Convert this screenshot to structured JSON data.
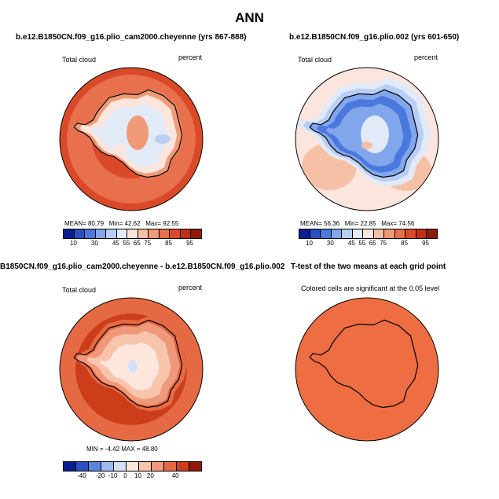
{
  "figure_title": "ANN",
  "panels": [
    {
      "title": "b.e12.B1850CN.f09_g16.plio_cam2000.cheyenne (yrs 867-888)",
      "left_label": "Total cloud",
      "right_label": "percent",
      "stats": {
        "mean_label": "MEAN=",
        "mean": "80.79",
        "min_label": "Min=",
        "min": "42.62",
        "max_label": "Max=",
        "max": "92.55"
      },
      "colorbar_ticks": [
        "10",
        "30",
        "45",
        "55",
        "65",
        "75",
        "85",
        "95"
      ]
    },
    {
      "title": "b.e12.B1850CN.f09_g16.plio.002 (yrs 601-650)",
      "left_label": "Total cloud",
      "right_label": "percent",
      "stats": {
        "mean_label": "MEAN=",
        "mean": "56.36",
        "min_label": "Min=",
        "min": "22.85",
        "max_label": "Max=",
        "max": "74.56"
      },
      "colorbar_ticks": [
        "10",
        "30",
        "45",
        "55",
        "65",
        "75",
        "85",
        "95"
      ]
    },
    {
      "title": "B1850CN.f09_g16.plio_cam2000.cheyenne - b.e12.B1850CN.f09_g16.plio.002",
      "left_label": "Total cloud",
      "right_label": "percent",
      "stats_text": "MIN =  -4.42  MAX =  48.80",
      "colorbar_ticks": [
        "-40",
        "-20",
        "-10",
        "0",
        "10",
        "20",
        "40"
      ]
    },
    {
      "title": "T-test of the two means at each grid point",
      "subtitle": "Colored cells are significant at the 0.05 level"
    }
  ],
  "colors": {
    "abs_scale": [
      "#0a1f8f",
      "#2850c0",
      "#4a78dc",
      "#82a6ec",
      "#b8cef4",
      "#e2eaf8",
      "#fbe5dc",
      "#f6c0a6",
      "#f09a78",
      "#e8704c",
      "#db4a28",
      "#c03018",
      "#8f1a0c"
    ],
    "diff_scale": [
      "#0a1f8f",
      "#2850c0",
      "#5a86e0",
      "#9ebaf0",
      "#d2e0f8",
      "#fde6dc",
      "#f8c4ac",
      "#f0987a",
      "#e56a44",
      "#cc3e1a",
      "#8f1a0c"
    ],
    "ttest_fill": "#ef6d42"
  },
  "chart_data": [
    {
      "type": "heatmap",
      "projection": "polar stereographic (south pole)",
      "variable": "Total cloud",
      "units": "percent",
      "mean": 80.79,
      "min": 42.62,
      "max": 92.55,
      "levels": [
        10,
        30,
        45,
        55,
        65,
        75,
        85,
        95
      ]
    },
    {
      "type": "heatmap",
      "projection": "polar stereographic (south pole)",
      "variable": "Total cloud",
      "units": "percent",
      "mean": 56.36,
      "min": 22.85,
      "max": 74.56,
      "levels": [
        10,
        30,
        45,
        55,
        65,
        75,
        85,
        95
      ]
    },
    {
      "type": "heatmap",
      "projection": "polar stereographic (south pole)",
      "variable": "Total cloud",
      "units": "percent",
      "min": -4.42,
      "max": 48.8,
      "levels": [
        -40,
        -20,
        -10,
        0,
        10,
        20,
        40
      ]
    },
    {
      "type": "heatmap",
      "projection": "polar stereographic (south pole)",
      "description": "significance mask"
    }
  ]
}
